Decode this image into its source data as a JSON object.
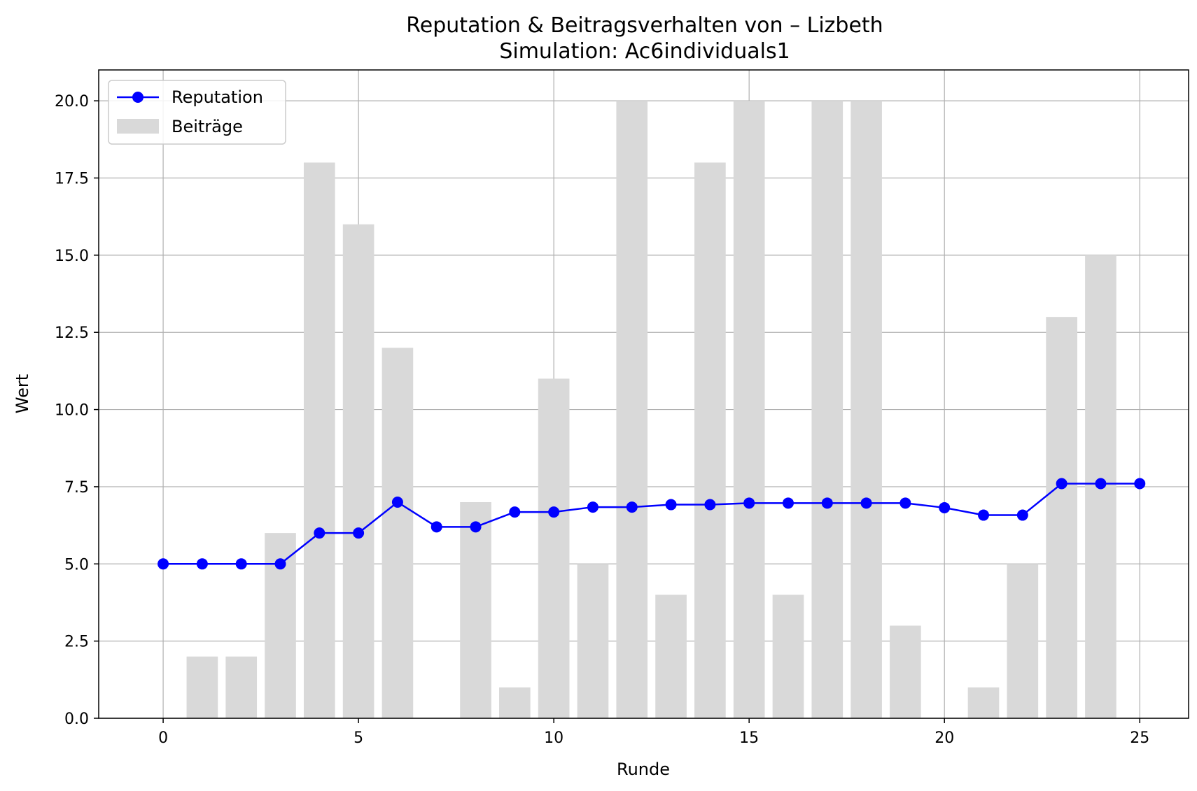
{
  "chart_data": {
    "type": "bar+line",
    "title": "Reputation & Beitragsverhalten von – Lizbeth",
    "subtitle": "Simulation: Ac6individuals1",
    "xlabel": "Runde",
    "ylabel": "Wert",
    "xlim": [
      -1.65,
      26.25
    ],
    "ylim": [
      0,
      21
    ],
    "xticks": [
      0,
      5,
      10,
      15,
      20,
      25
    ],
    "yticks": [
      0.0,
      2.5,
      5.0,
      7.5,
      10.0,
      12.5,
      15.0,
      17.5,
      20.0
    ],
    "grid": true,
    "legend_position": "top-left",
    "x": [
      0,
      1,
      2,
      3,
      4,
      5,
      6,
      7,
      8,
      9,
      10,
      11,
      12,
      13,
      14,
      15,
      16,
      17,
      18,
      19,
      20,
      21,
      22,
      23,
      24,
      25
    ],
    "series": [
      {
        "name": "Reputation",
        "kind": "line",
        "marker": "circle",
        "color": "#0000ff",
        "values": [
          5.0,
          5.0,
          5.0,
          5.0,
          6.0,
          6.0,
          7.0,
          6.2,
          6.2,
          6.68,
          6.68,
          6.84,
          6.84,
          6.92,
          6.92,
          6.97,
          6.97,
          6.97,
          6.97,
          6.97,
          6.82,
          6.58,
          6.58,
          7.6,
          7.6,
          7.6
        ]
      },
      {
        "name": "Beiträge",
        "kind": "bar",
        "color": "#d9d9d9",
        "values": [
          0,
          2,
          2,
          6,
          18,
          16,
          12,
          0,
          7,
          1,
          11,
          5,
          20,
          4,
          18,
          20,
          4,
          20,
          20,
          3,
          0,
          1,
          5,
          13,
          15,
          0
        ]
      }
    ]
  }
}
